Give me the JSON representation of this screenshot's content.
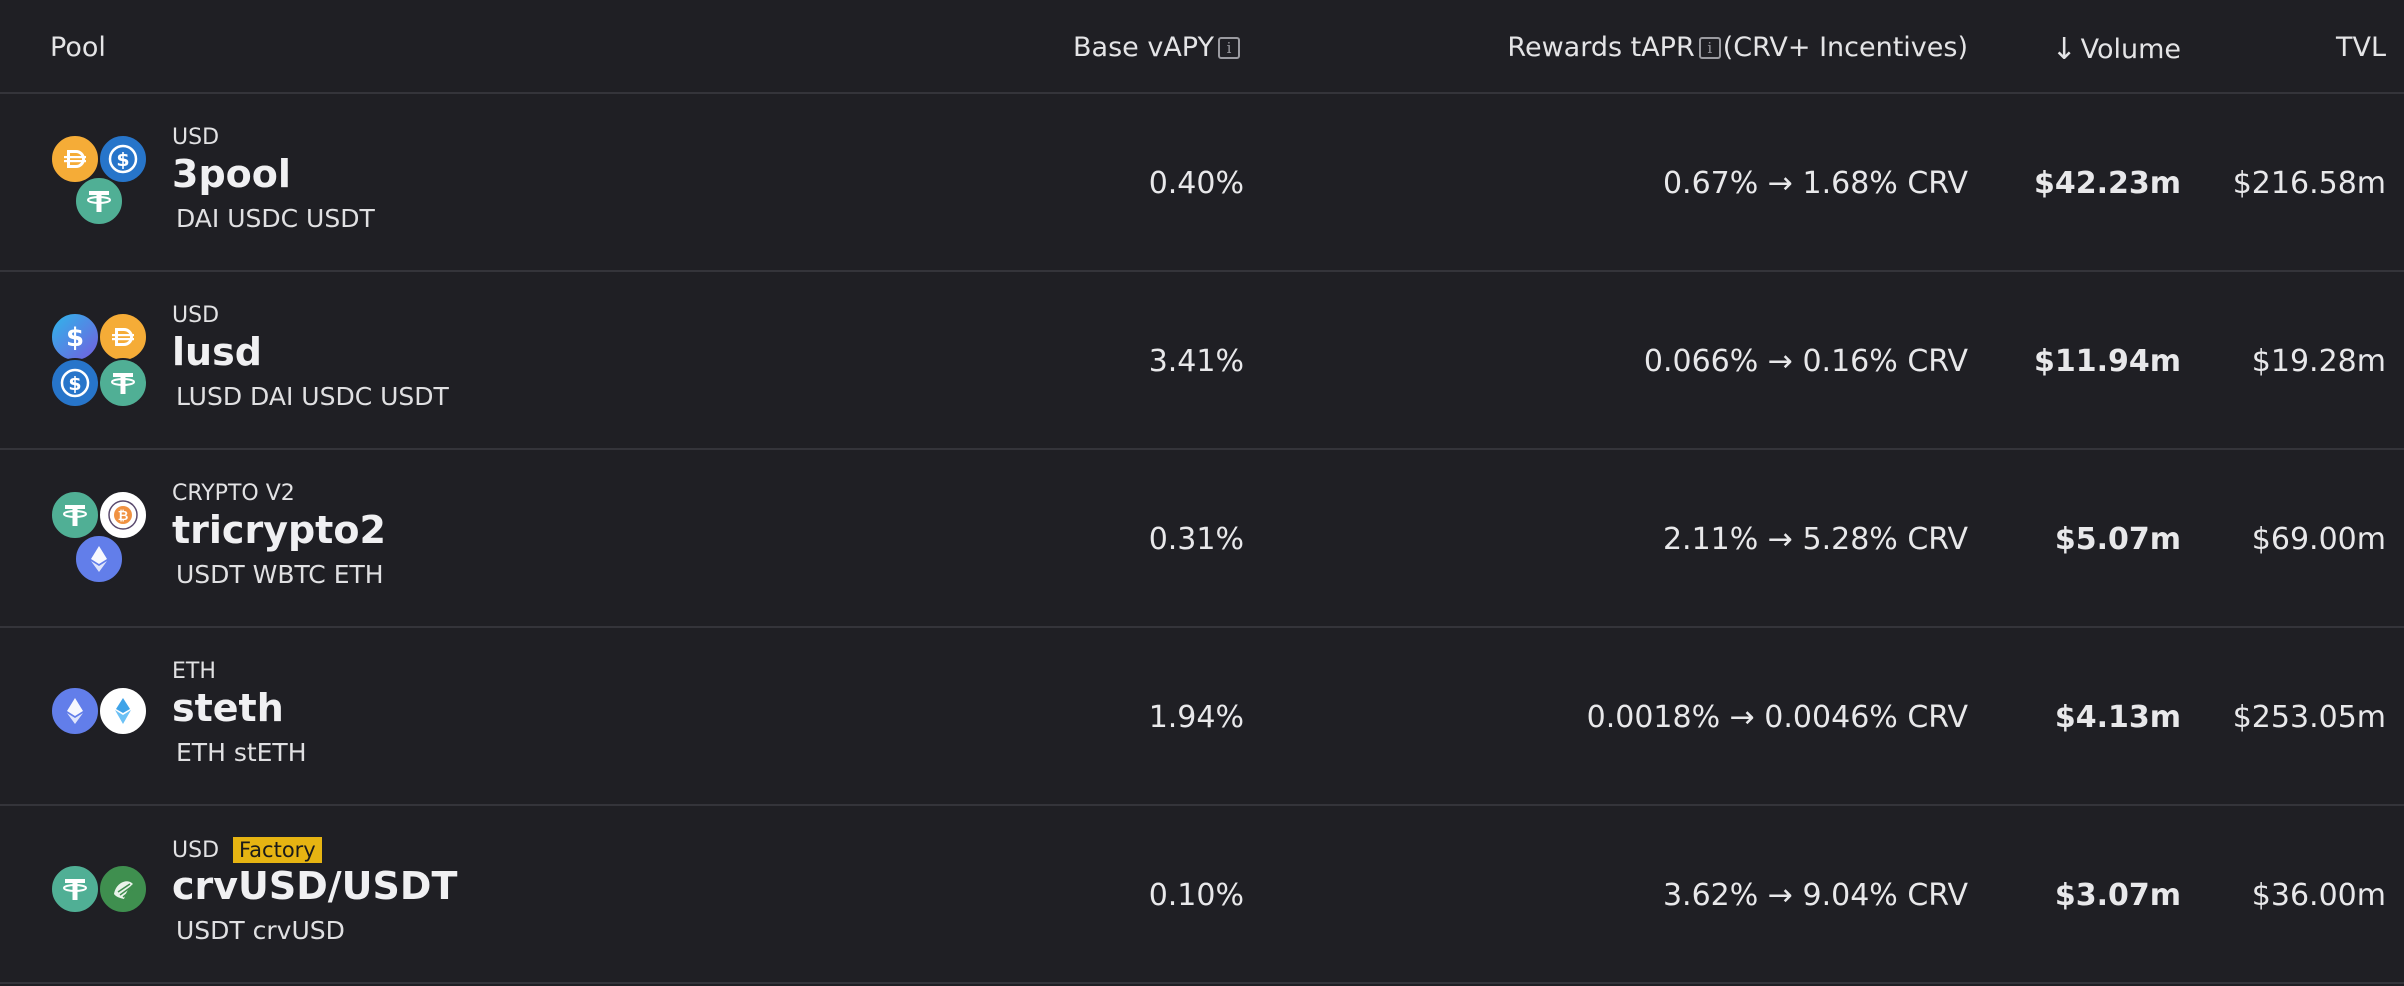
{
  "header": {
    "pool": "Pool",
    "base_vapy": "Base vAPY",
    "rewards_tapr": "Rewards tAPR",
    "rewards_suffix": "(CRV+ Incentives)",
    "volume": "Volume",
    "tvl": "TVL",
    "info_glyph": "i",
    "sort_arrow": "↓"
  },
  "rows": [
    {
      "tag": "USD",
      "factory": "",
      "name": "3pool",
      "coins": "DAI USDC USDT",
      "icons": [
        "dai-icon",
        "usdc-icon",
        "usdt-icon"
      ],
      "base_vapy": "0.40%",
      "rewards": "0.67% → 1.68% CRV",
      "volume": "$42.23m",
      "tvl": "$216.58m"
    },
    {
      "tag": "USD",
      "factory": "",
      "name": "lusd",
      "coins": "LUSD DAI USDC USDT",
      "icons": [
        "lusd-icon",
        "dai-icon",
        "usdc-icon",
        "usdt-icon"
      ],
      "base_vapy": "3.41%",
      "rewards": "0.066% → 0.16% CRV",
      "volume": "$11.94m",
      "tvl": "$19.28m"
    },
    {
      "tag": "CRYPTO V2",
      "factory": "",
      "name": "tricrypto2",
      "coins": "USDT WBTC ETH",
      "icons": [
        "usdt-icon",
        "wbtc-icon",
        "eth-icon"
      ],
      "base_vapy": "0.31%",
      "rewards": "2.11% → 5.28% CRV",
      "volume": "$5.07m",
      "tvl": "$69.00m"
    },
    {
      "tag": "ETH",
      "factory": "",
      "name": "steth",
      "coins": "ETH stETH",
      "icons": [
        "eth-icon",
        "steth-icon"
      ],
      "base_vapy": "1.94%",
      "rewards": "0.0018% → 0.0046% CRV",
      "volume": "$4.13m",
      "tvl": "$253.05m"
    },
    {
      "tag": "USD",
      "factory": "Factory",
      "name": "crvUSD/USDT",
      "coins": "USDT crvUSD",
      "icons": [
        "usdt-icon",
        "crvusd-icon"
      ],
      "base_vapy": "0.10%",
      "rewards": "3.62% → 9.04% CRV",
      "volume": "$3.07m",
      "tvl": "$36.00m"
    }
  ],
  "colors": {
    "background": "#1f1f24",
    "divider": "#34343a",
    "factory_badge": "#e6b412",
    "dai": "#f5ac37",
    "usdc": "#2775ca",
    "usdt": "#50af95",
    "eth": "#627eea",
    "wbtc": "#f09242",
    "crvusd": "#3f8f4f"
  }
}
